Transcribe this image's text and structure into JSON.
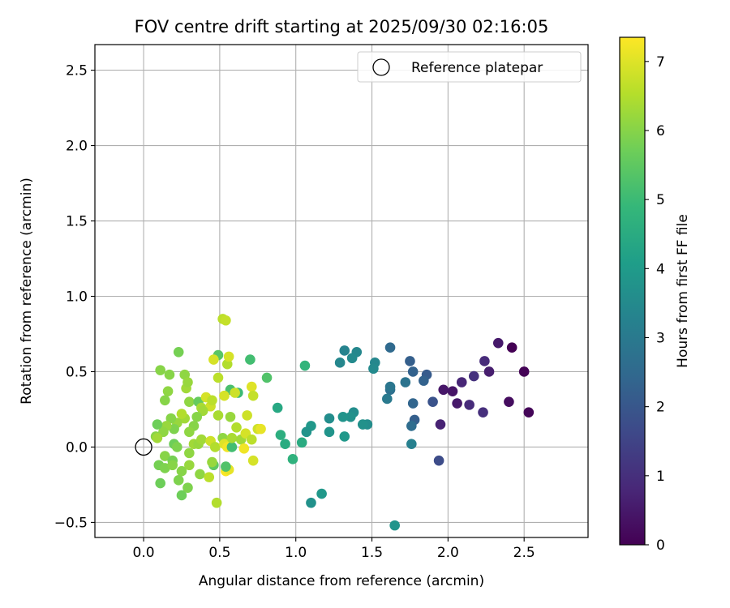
{
  "chart_data": {
    "type": "scatter",
    "title": "FOV centre drift starting at 2025/09/30 02:16:05",
    "xlabel": "Angular distance from reference (arcmin)",
    "ylabel": "Rotation from reference (arcmin)",
    "xlim": [
      -0.32,
      2.92
    ],
    "ylim": [
      -0.6,
      2.67
    ],
    "xticks": [
      0.0,
      0.5,
      1.0,
      1.5,
      2.0,
      2.5
    ],
    "xtick_labels": [
      "0.0",
      "0.5",
      "1.0",
      "1.5",
      "2.0",
      "2.5"
    ],
    "yticks": [
      -0.5,
      0.0,
      0.5,
      1.0,
      1.5,
      2.0,
      2.5
    ],
    "ytick_labels": [
      "−0.5",
      "0.0",
      "0.5",
      "1.0",
      "1.5",
      "2.0",
      "2.5"
    ],
    "grid": true,
    "legend": {
      "position": "top-right",
      "entries": [
        "Reference platepar"
      ]
    },
    "reference_point": {
      "x": 0.0,
      "y": 0.0,
      "label": "Reference platepar"
    },
    "colorbar": {
      "label": "Hours from first FF file",
      "range": [
        0,
        7.35
      ],
      "ticks": [
        0,
        1,
        2,
        3,
        4,
        5,
        6,
        7
      ],
      "tick_labels": [
        "0",
        "1",
        "2",
        "3",
        "4",
        "5",
        "6",
        "7"
      ],
      "colormap": [
        "#440154",
        "#482878",
        "#3e4989",
        "#31688e",
        "#26828e",
        "#1f9e89",
        "#35b779",
        "#6ece58",
        "#b5de2b",
        "#fde725"
      ]
    },
    "points": [
      {
        "x": 2.42,
        "y": 0.66,
        "t": 0.0
      },
      {
        "x": 2.5,
        "y": 0.5,
        "t": 0.05
      },
      {
        "x": 2.53,
        "y": 0.23,
        "t": 0.1
      },
      {
        "x": 2.4,
        "y": 0.3,
        "t": 0.25
      },
      {
        "x": 2.33,
        "y": 0.69,
        "t": 0.5
      },
      {
        "x": 2.27,
        "y": 0.5,
        "t": 0.6
      },
      {
        "x": 2.24,
        "y": 0.57,
        "t": 0.9
      },
      {
        "x": 2.23,
        "y": 0.23,
        "t": 1.0
      },
      {
        "x": 2.17,
        "y": 0.47,
        "t": 1.05
      },
      {
        "x": 2.14,
        "y": 0.28,
        "t": 0.9
      },
      {
        "x": 2.09,
        "y": 0.43,
        "t": 0.8
      },
      {
        "x": 2.06,
        "y": 0.29,
        "t": 0.5
      },
      {
        "x": 2.03,
        "y": 0.37,
        "t": 0.4
      },
      {
        "x": 1.97,
        "y": 0.38,
        "t": 0.45
      },
      {
        "x": 1.95,
        "y": 0.15,
        "t": 0.7
      },
      {
        "x": 1.94,
        "y": -0.09,
        "t": 1.7
      },
      {
        "x": 1.9,
        "y": 0.3,
        "t": 1.9
      },
      {
        "x": 1.86,
        "y": 0.48,
        "t": 2.1
      },
      {
        "x": 1.84,
        "y": 0.44,
        "t": 2.3
      },
      {
        "x": 1.78,
        "y": 0.18,
        "t": 2.2
      },
      {
        "x": 1.77,
        "y": 0.29,
        "t": 2.4
      },
      {
        "x": 1.76,
        "y": 0.14,
        "t": 2.6
      },
      {
        "x": 1.76,
        "y": 0.02,
        "t": 3.2
      },
      {
        "x": 1.77,
        "y": 0.5,
        "t": 2.3
      },
      {
        "x": 1.75,
        "y": 0.57,
        "t": 2.2
      },
      {
        "x": 1.72,
        "y": 0.43,
        "t": 2.8
      },
      {
        "x": 1.62,
        "y": 0.66,
        "t": 2.5
      },
      {
        "x": 1.62,
        "y": 0.38,
        "t": 2.7
      },
      {
        "x": 1.62,
        "y": 0.4,
        "t": 2.9
      },
      {
        "x": 1.6,
        "y": 0.32,
        "t": 3.0
      },
      {
        "x": 1.65,
        "y": -0.52,
        "t": 3.8
      },
      {
        "x": 1.52,
        "y": 0.56,
        "t": 3.4
      },
      {
        "x": 1.51,
        "y": 0.52,
        "t": 3.5
      },
      {
        "x": 1.47,
        "y": 0.15,
        "t": 3.6
      },
      {
        "x": 1.44,
        "y": 0.15,
        "t": 3.7
      },
      {
        "x": 1.4,
        "y": 0.63,
        "t": 3.4
      },
      {
        "x": 1.37,
        "y": 0.59,
        "t": 3.5
      },
      {
        "x": 1.32,
        "y": 0.64,
        "t": 3.3
      },
      {
        "x": 1.29,
        "y": 0.56,
        "t": 3.4
      },
      {
        "x": 1.38,
        "y": 0.23,
        "t": 3.6
      },
      {
        "x": 1.36,
        "y": 0.2,
        "t": 3.7
      },
      {
        "x": 1.31,
        "y": 0.2,
        "t": 3.8
      },
      {
        "x": 1.32,
        "y": 0.07,
        "t": 3.9
      },
      {
        "x": 1.22,
        "y": 0.19,
        "t": 3.6
      },
      {
        "x": 1.22,
        "y": 0.1,
        "t": 3.8
      },
      {
        "x": 1.17,
        "y": -0.31,
        "t": 3.9
      },
      {
        "x": 1.1,
        "y": 0.14,
        "t": 3.9
      },
      {
        "x": 1.07,
        "y": 0.1,
        "t": 3.8
      },
      {
        "x": 1.1,
        "y": -0.37,
        "t": 3.7
      },
      {
        "x": 1.06,
        "y": 0.54,
        "t": 4.8
      },
      {
        "x": 1.04,
        "y": 0.03,
        "t": 4.5
      },
      {
        "x": 0.98,
        "y": -0.08,
        "t": 4.7
      },
      {
        "x": 0.93,
        "y": 0.02,
        "t": 4.5
      },
      {
        "x": 0.9,
        "y": 0.08,
        "t": 4.6
      },
      {
        "x": 0.88,
        "y": 0.26,
        "t": 4.4
      },
      {
        "x": 0.81,
        "y": 0.46,
        "t": 5.3
      },
      {
        "x": 0.7,
        "y": 0.58,
        "t": 5.1
      },
      {
        "x": 0.62,
        "y": 0.36,
        "t": 5.0
      },
      {
        "x": 0.57,
        "y": 0.38,
        "t": 5.2
      },
      {
        "x": 0.49,
        "y": 0.61,
        "t": 5.4
      },
      {
        "x": 0.52,
        "y": 0.85,
        "t": 6.6
      },
      {
        "x": 0.54,
        "y": 0.84,
        "t": 6.7
      },
      {
        "x": 0.55,
        "y": 0.55,
        "t": 6.5
      },
      {
        "x": 0.56,
        "y": 0.6,
        "t": 6.9
      },
      {
        "x": 0.46,
        "y": 0.58,
        "t": 6.9
      },
      {
        "x": 0.49,
        "y": 0.46,
        "t": 6.6
      },
      {
        "x": 0.23,
        "y": 0.63,
        "t": 5.8
      },
      {
        "x": 0.11,
        "y": 0.51,
        "t": 6.0
      },
      {
        "x": 0.17,
        "y": 0.48,
        "t": 6.0
      },
      {
        "x": 0.27,
        "y": 0.48,
        "t": 6.1
      },
      {
        "x": 0.28,
        "y": 0.39,
        "t": 6.3
      },
      {
        "x": 0.29,
        "y": 0.43,
        "t": 6.2
      },
      {
        "x": 0.16,
        "y": 0.37,
        "t": 6.1
      },
      {
        "x": 0.14,
        "y": 0.31,
        "t": 6.0
      },
      {
        "x": 0.3,
        "y": 0.3,
        "t": 6.1
      },
      {
        "x": 0.36,
        "y": 0.3,
        "t": 5.6
      },
      {
        "x": 0.38,
        "y": 0.26,
        "t": 6.4
      },
      {
        "x": 0.41,
        "y": 0.33,
        "t": 6.9
      },
      {
        "x": 0.44,
        "y": 0.27,
        "t": 6.8
      },
      {
        "x": 0.45,
        "y": 0.31,
        "t": 6.6
      },
      {
        "x": 0.39,
        "y": 0.24,
        "t": 6.3
      },
      {
        "x": 0.35,
        "y": 0.2,
        "t": 6.0
      },
      {
        "x": 0.33,
        "y": 0.14,
        "t": 6.0
      },
      {
        "x": 0.3,
        "y": 0.1,
        "t": 6.1
      },
      {
        "x": 0.27,
        "y": 0.19,
        "t": 6.3
      },
      {
        "x": 0.25,
        "y": 0.22,
        "t": 6.5
      },
      {
        "x": 0.22,
        "y": 0.16,
        "t": 6.2
      },
      {
        "x": 0.2,
        "y": 0.12,
        "t": 5.9
      },
      {
        "x": 0.18,
        "y": 0.19,
        "t": 6.0
      },
      {
        "x": 0.15,
        "y": 0.14,
        "t": 6.2
      },
      {
        "x": 0.13,
        "y": 0.1,
        "t": 6.1
      },
      {
        "x": 0.09,
        "y": 0.15,
        "t": 5.7
      },
      {
        "x": 0.08,
        "y": 0.07,
        "t": 6.0
      },
      {
        "x": 0.09,
        "y": 0.06,
        "t": 6.3
      },
      {
        "x": 0.14,
        "y": -0.06,
        "t": 6.0
      },
      {
        "x": 0.1,
        "y": -0.12,
        "t": 5.8
      },
      {
        "x": 0.14,
        "y": -0.14,
        "t": 5.9
      },
      {
        "x": 0.11,
        "y": -0.24,
        "t": 5.7
      },
      {
        "x": 0.19,
        "y": -0.09,
        "t": 5.8
      },
      {
        "x": 0.19,
        "y": -0.12,
        "t": 6.0
      },
      {
        "x": 0.2,
        "y": 0.02,
        "t": 5.7
      },
      {
        "x": 0.22,
        "y": 0.0,
        "t": 5.9
      },
      {
        "x": 0.23,
        "y": -0.22,
        "t": 5.9
      },
      {
        "x": 0.25,
        "y": -0.16,
        "t": 6.0
      },
      {
        "x": 0.25,
        "y": -0.32,
        "t": 5.7
      },
      {
        "x": 0.29,
        "y": -0.27,
        "t": 5.9
      },
      {
        "x": 0.3,
        "y": -0.04,
        "t": 6.1
      },
      {
        "x": 0.3,
        "y": -0.12,
        "t": 6.2
      },
      {
        "x": 0.33,
        "y": 0.02,
        "t": 6.3
      },
      {
        "x": 0.36,
        "y": 0.02,
        "t": 6.2
      },
      {
        "x": 0.38,
        "y": 0.05,
        "t": 6.3
      },
      {
        "x": 0.37,
        "y": -0.18,
        "t": 6.1
      },
      {
        "x": 0.43,
        "y": -0.2,
        "t": 6.6
      },
      {
        "x": 0.44,
        "y": 0.04,
        "t": 6.8
      },
      {
        "x": 0.47,
        "y": 0.0,
        "t": 6.5
      },
      {
        "x": 0.49,
        "y": 0.21,
        "t": 6.4
      },
      {
        "x": 0.48,
        "y": -0.37,
        "t": 6.5
      },
      {
        "x": 0.46,
        "y": -0.12,
        "t": 5.5
      },
      {
        "x": 0.45,
        "y": -0.1,
        "t": 6.2
      },
      {
        "x": 0.52,
        "y": 0.06,
        "t": 6.1
      },
      {
        "x": 0.53,
        "y": 0.34,
        "t": 6.9
      },
      {
        "x": 0.53,
        "y": 0.02,
        "t": 7.0
      },
      {
        "x": 0.55,
        "y": 0.0,
        "t": 7.2
      },
      {
        "x": 0.54,
        "y": -0.16,
        "t": 7.3
      },
      {
        "x": 0.56,
        "y": -0.15,
        "t": 7.1
      },
      {
        "x": 0.54,
        "y": -0.13,
        "t": 5.3
      },
      {
        "x": 0.58,
        "y": 0.0,
        "t": 5.1
      },
      {
        "x": 0.57,
        "y": 0.2,
        "t": 6.2
      },
      {
        "x": 0.58,
        "y": 0.06,
        "t": 6.4
      },
      {
        "x": 0.6,
        "y": 0.36,
        "t": 6.8
      },
      {
        "x": 0.61,
        "y": 0.13,
        "t": 6.5
      },
      {
        "x": 0.64,
        "y": 0.05,
        "t": 6.3
      },
      {
        "x": 0.66,
        "y": -0.01,
        "t": 7.2
      },
      {
        "x": 0.67,
        "y": 0.09,
        "t": 6.9
      },
      {
        "x": 0.68,
        "y": 0.21,
        "t": 6.8
      },
      {
        "x": 0.71,
        "y": 0.4,
        "t": 7.0
      },
      {
        "x": 0.72,
        "y": 0.34,
        "t": 6.7
      },
      {
        "x": 0.71,
        "y": 0.05,
        "t": 6.6
      },
      {
        "x": 0.72,
        "y": -0.09,
        "t": 6.9
      },
      {
        "x": 0.75,
        "y": 0.12,
        "t": 6.8
      },
      {
        "x": 0.77,
        "y": 0.12,
        "t": 7.1
      }
    ]
  }
}
